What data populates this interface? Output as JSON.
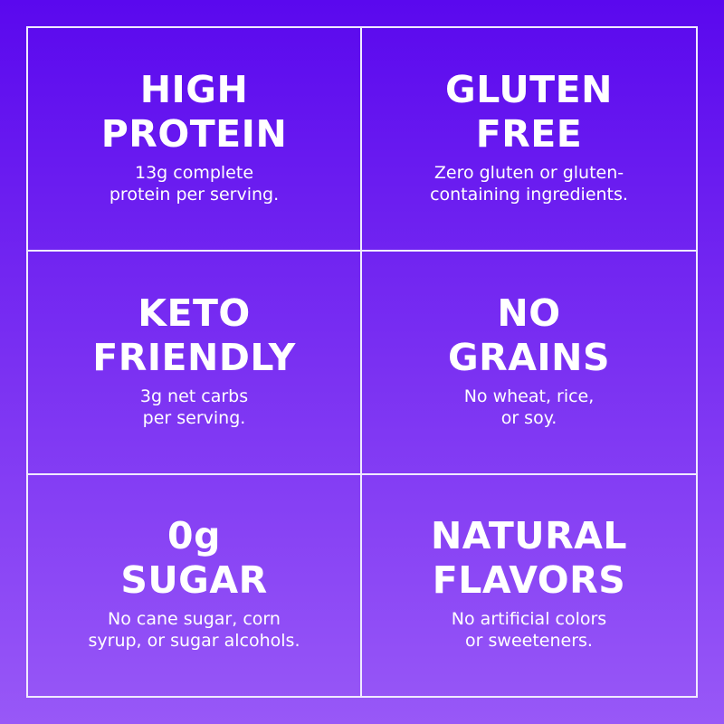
{
  "features": [
    {
      "title_lines": [
        "HIGH",
        "PROTEIN"
      ],
      "desc_lines": [
        "13g complete",
        "protein per serving."
      ]
    },
    {
      "title_lines": [
        "GLUTEN",
        "FREE"
      ],
      "desc_lines": [
        "Zero gluten or gluten-",
        "containing ingredients."
      ]
    },
    {
      "title_lines": [
        "KETO",
        "FRIENDLY"
      ],
      "desc_lines": [
        "3g net carbs",
        "per serving."
      ]
    },
    {
      "title_lines": [
        "NO",
        "GRAINS"
      ],
      "desc_lines": [
        "No wheat, rice,",
        "or soy."
      ]
    },
    {
      "title_lines": [
        "0g",
        "SUGAR"
      ],
      "desc_lines": [
        "No cane sugar, corn",
        "syrup, or sugar alcohols."
      ]
    },
    {
      "title_lines": [
        "NATURAL",
        "FLAVORS"
      ],
      "desc_lines": [
        "No artificial colors",
        "or sweeteners."
      ]
    }
  ],
  "colors": {
    "gradient_top": "#5a08ee",
    "gradient_bottom": "#9858f7",
    "lines": "#f0eaff",
    "text": "#ffffff"
  }
}
